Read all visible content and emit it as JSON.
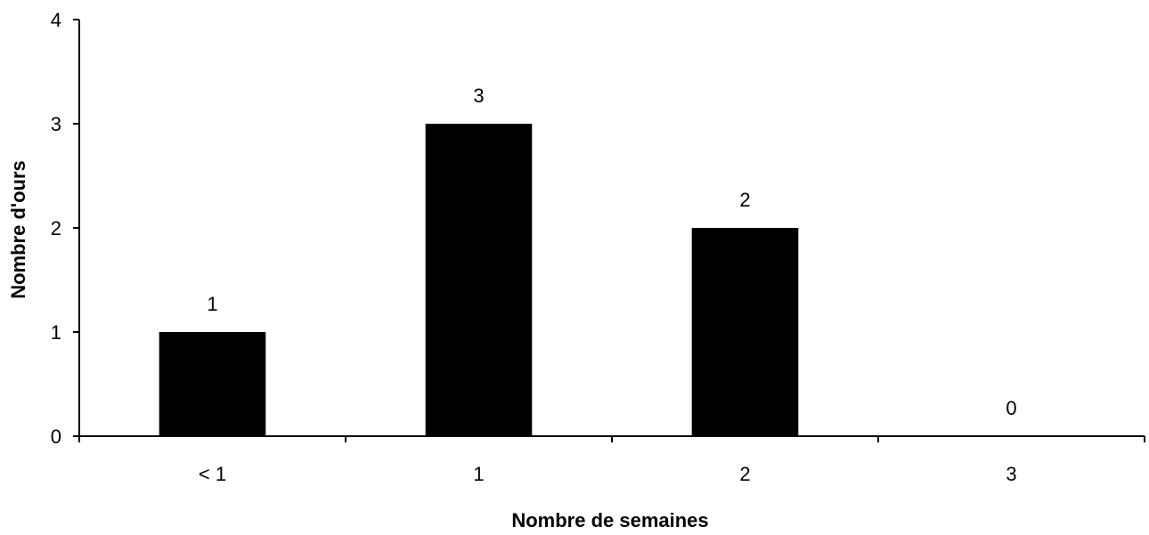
{
  "chart_data": {
    "type": "bar",
    "categories": [
      "< 1",
      "1",
      "2",
      "3"
    ],
    "values": [
      1,
      3,
      2,
      0
    ],
    "data_labels": [
      "1",
      "3",
      "2",
      "0"
    ],
    "xlabel": "Nombre de semaines",
    "ylabel": "Nombre d'ours",
    "ylim": [
      0,
      4
    ],
    "yticks": [
      "0",
      "1",
      "2",
      "3",
      "4"
    ],
    "grid": false,
    "legend": "none",
    "colors": {
      "bar": "#000000",
      "axis": "#000000",
      "background": "#ffffff"
    }
  }
}
